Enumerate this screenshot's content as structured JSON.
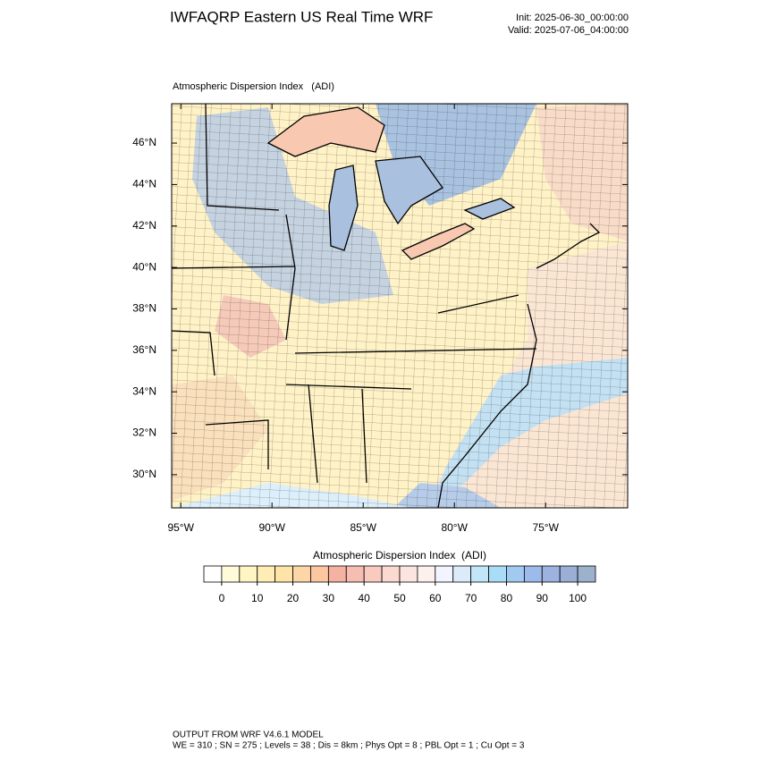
{
  "header": {
    "title": "IWFAQRP Eastern US Real Time WRF",
    "init": "Init: 2025-06-30_00:00:00",
    "valid": "Valid: 2025-07-06_04:00:00"
  },
  "map": {
    "subtitle": "Atmospheric Dispersion Index   (ADI)",
    "latlim": [
      28.4,
      47.9
    ],
    "lonlim": [
      -95.5,
      -70.5
    ],
    "lat_ticks": [
      {
        "value": 30,
        "label": "30°N"
      },
      {
        "value": 32,
        "label": "32°N"
      },
      {
        "value": 34,
        "label": "34°N"
      },
      {
        "value": 36,
        "label": "36°N"
      },
      {
        "value": 38,
        "label": "38°N"
      },
      {
        "value": 40,
        "label": "40°N"
      },
      {
        "value": 42,
        "label": "42°N"
      },
      {
        "value": 44,
        "label": "44°N"
      },
      {
        "value": 46,
        "label": "46°N"
      }
    ],
    "lon_ticks": [
      {
        "value": -95,
        "label": "95°W"
      },
      {
        "value": -90,
        "label": "90°W"
      },
      {
        "value": -85,
        "label": "85°W"
      },
      {
        "value": -80,
        "label": "80°W"
      },
      {
        "value": -75,
        "label": "75°W"
      }
    ]
  },
  "colorbar": {
    "title": "Atmospheric Dispersion Index  (ADI)",
    "lim": [
      -5,
      105
    ],
    "ticks": [
      0,
      10,
      20,
      30,
      40,
      50,
      60,
      70,
      80,
      90,
      100
    ],
    "colors": [
      "#ffffff",
      "#fffbd8",
      "#fff4c4",
      "#ffedb4",
      "#ffe4a8",
      "#fcd6a6",
      "#fbc6a0",
      "#f5b2a2",
      "#f6bdb2",
      "#f9cac0",
      "#fbd8d0",
      "#fce5e0",
      "#fdf1ee",
      "#f2f4ff",
      "#dcebfa",
      "#c2e6f8",
      "#a9dcf6",
      "#a2caf0",
      "#9cbaea",
      "#9eb2e0",
      "#9aaed6",
      "#9cb2cc"
    ]
  },
  "footer": {
    "line1": "OUTPUT FROM WRF V4.6.1 MODEL",
    "line2": "WE = 310 ; SN = 275 ; Levels = 38 ; Dis = 8km ; Phys Opt = 8 ; PBL Opt = 1 ; Cu Opt = 3"
  }
}
